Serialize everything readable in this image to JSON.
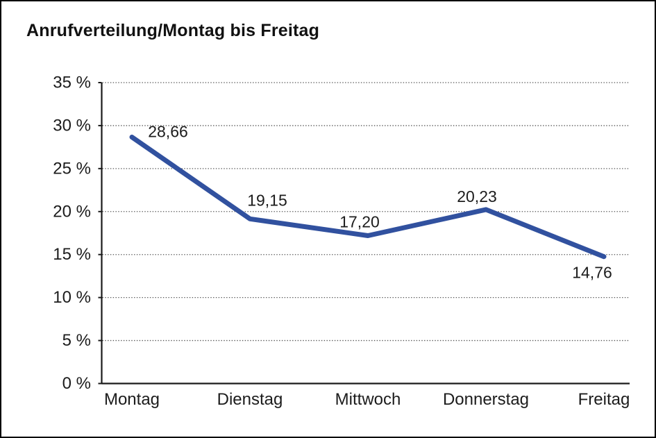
{
  "window": {
    "background": "#ffffff",
    "border_color": "#000000"
  },
  "title": "Anrufverteilung/Montag bis Freitag",
  "chart_data": {
    "type": "line",
    "title": "Anrufverteilung/Montag bis Freitag",
    "categories": [
      "Montag",
      "Dienstag",
      "Mittwoch",
      "Donnerstag",
      "Freitag"
    ],
    "series": [
      {
        "name": "Anrufverteilung",
        "values": [
          28.66,
          19.15,
          17.2,
          20.23,
          14.76
        ],
        "data_labels": [
          "28,66",
          "19,15",
          "17,20",
          "20,23",
          "14,76"
        ]
      }
    ],
    "xlabel": "",
    "ylabel": "",
    "ylim": [
      0,
      35
    ],
    "y_tick_step": 5,
    "y_tick_labels": [
      "0 %",
      "5 %",
      "10 %",
      "15 %",
      "20 %",
      "25 %",
      "30 %",
      "35 %"
    ],
    "grid": "horizontal-dotted",
    "legend": "none",
    "markers": false,
    "colors": {
      "line": "#31519F",
      "axis": "#1a1a1a",
      "grid": "#555555",
      "text": "#1c1c1c"
    }
  }
}
